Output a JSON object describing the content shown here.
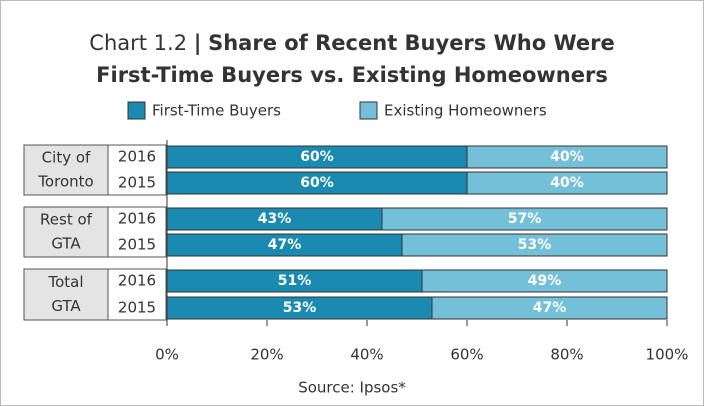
{
  "chart_data": {
    "type": "stacked_barh",
    "title_prefix": "Chart 1.2",
    "title_separator": "|",
    "title_lines": [
      "Share of Recent Buyers Who Were",
      "First-Time Buyers vs. Existing Homeowners"
    ],
    "groups": [
      {
        "label_lines": [
          "City of",
          "Toronto"
        ]
      },
      {
        "label_lines": [
          "Rest of",
          "GTA"
        ]
      },
      {
        "label_lines": [
          "Total",
          "GTA"
        ]
      }
    ],
    "categories": [
      "2016",
      "2015",
      "2016",
      "2015",
      "2016",
      "2015"
    ],
    "series": [
      {
        "name": "First-Time Buyers",
        "color": "#1a8ab0",
        "values": [
          60,
          60,
          43,
          47,
          51,
          53
        ],
        "value_labels": [
          "60%",
          "60%",
          "43%",
          "47%",
          "51%",
          "53%"
        ]
      },
      {
        "name": "Existing Homeowners",
        "color": "#74c0d9",
        "values": [
          40,
          40,
          57,
          53,
          49,
          47
        ],
        "value_labels": [
          "40%",
          "40%",
          "57%",
          "53%",
          "49%",
          "47%"
        ]
      }
    ],
    "xlim": [
      0,
      100
    ],
    "xticks": [
      {
        "value": 0,
        "label": "0%"
      },
      {
        "value": 20,
        "label": "20%"
      },
      {
        "value": 40,
        "label": "40%"
      },
      {
        "value": 60,
        "label": "60%"
      },
      {
        "value": 80,
        "label": "80%"
      },
      {
        "value": 100,
        "label": "100%"
      }
    ],
    "source": "Source: Ipsos*"
  }
}
